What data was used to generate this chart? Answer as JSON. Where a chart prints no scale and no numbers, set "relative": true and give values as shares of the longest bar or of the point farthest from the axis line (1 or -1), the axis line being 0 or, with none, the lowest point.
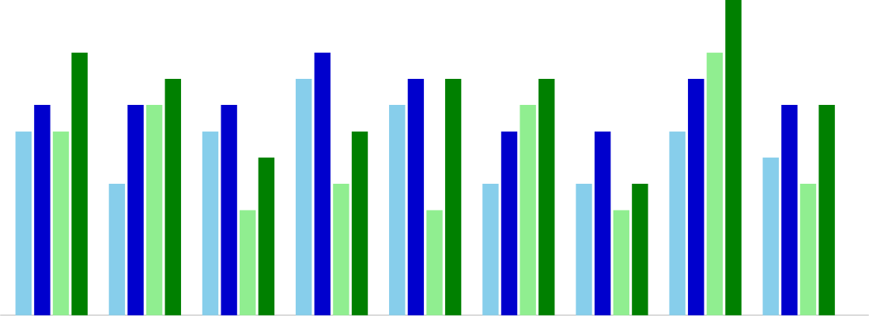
{
  "chart_data": {
    "type": "bar",
    "relative": true,
    "categories": [
      null,
      null,
      null,
      null,
      null,
      null,
      null,
      null,
      null
    ],
    "series": [
      {
        "color": "#87ceeb",
        "values": [
          0.583,
          0.417,
          0.583,
          0.75,
          0.667,
          0.417,
          0.417,
          0.583,
          0.5
        ]
      },
      {
        "color": "#0000cd",
        "values": [
          0.667,
          0.667,
          0.667,
          0.833,
          0.75,
          0.583,
          0.583,
          0.75,
          0.667
        ]
      },
      {
        "color": "#90ee90",
        "values": [
          0.583,
          0.667,
          0.333,
          0.417,
          0.333,
          0.667,
          0.333,
          0.833,
          0.417
        ]
      },
      {
        "color": "#008000",
        "values": [
          0.833,
          0.75,
          0.5,
          0.583,
          0.75,
          0.75,
          0.417,
          1,
          0.667
        ]
      }
    ]
  }
}
